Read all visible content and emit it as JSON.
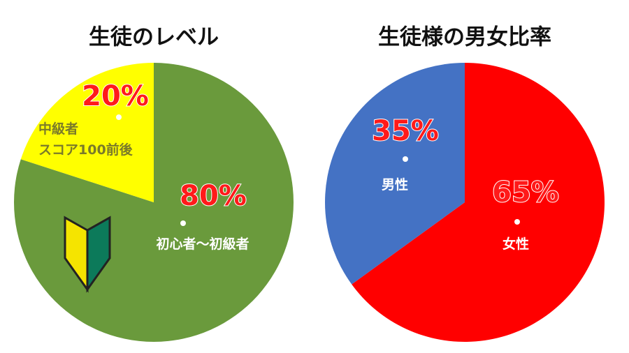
{
  "chart_data": [
    {
      "type": "pie",
      "title": "生徒のレベル",
      "categories": [
        "初心者〜初級者",
        "中級者\nスコア100前後"
      ],
      "values": [
        80,
        20
      ],
      "value_labels": [
        "80%",
        "20%"
      ],
      "colors": [
        "#6a9a3c",
        "#ffff00"
      ]
    },
    {
      "type": "pie",
      "title": "生徒様の男女比率",
      "categories": [
        "女性",
        "男性"
      ],
      "values": [
        65,
        35
      ],
      "value_labels": [
        "65%",
        "35%"
      ],
      "colors": [
        "#ff0000",
        "#4472c4"
      ]
    }
  ]
}
